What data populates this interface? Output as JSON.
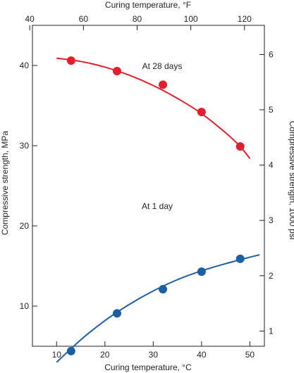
{
  "chart_data": {
    "type": "scatter",
    "xlabel": "Curing temperature, °C",
    "ylabel": "Compressive strength, MPa",
    "x2label": "Curing temperature, °F",
    "y2label": "Compressive strength, 1000 psi",
    "xlim": [
      5,
      53
    ],
    "ylim": [
      5,
      45
    ],
    "x2lim": [
      41,
      127.4
    ],
    "y2lim": [
      0.725,
      6.527
    ],
    "xticks": [
      10,
      20,
      30,
      40,
      50
    ],
    "yticks": [
      10,
      20,
      30,
      40
    ],
    "x2ticks": [
      40,
      60,
      80,
      100,
      120
    ],
    "y2ticks": [
      1,
      2,
      3,
      4,
      5,
      6
    ],
    "grid": false,
    "series": [
      {
        "name": "At 28 days",
        "color": "#e31e2d",
        "x": [
          13,
          22.5,
          32,
          40,
          48
        ],
        "y": [
          40.6,
          39.3,
          37.6,
          34.2,
          29.9
        ],
        "curve_x": [
          10,
          15,
          20,
          25,
          30,
          35,
          40,
          45,
          48,
          50
        ],
        "curve_y": [
          40.9,
          40.5,
          39.8,
          38.8,
          37.5,
          35.9,
          34.0,
          31.6,
          29.9,
          28.4
        ]
      },
      {
        "name": "At 1 day",
        "color": "#1d5fa3",
        "x": [
          13,
          22.5,
          32,
          40,
          48
        ],
        "y": [
          4.4,
          9.1,
          12.1,
          14.3,
          15.9
        ],
        "curve_x": [
          10,
          15,
          20,
          25,
          30,
          35,
          40,
          45,
          50,
          52
        ],
        "curve_y": [
          3.0,
          5.8,
          8.2,
          10.2,
          11.9,
          13.3,
          14.4,
          15.3,
          16.1,
          16.4
        ]
      }
    ]
  }
}
